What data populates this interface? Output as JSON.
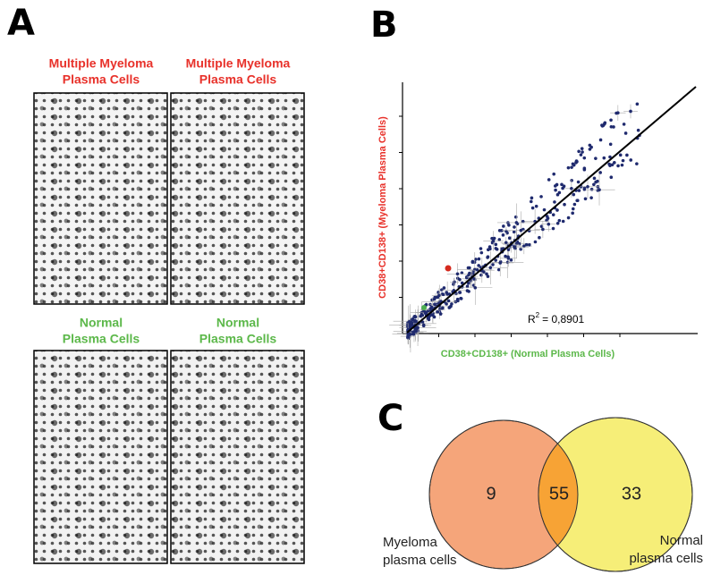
{
  "panels": {
    "A": {
      "label": "A",
      "blots": [
        {
          "title_line1": "Multiple Myeloma",
          "title_line2": "Plasma Cells"
        },
        {
          "title_line1": "Multiple Myeloma",
          "title_line2": "Plasma Cells"
        },
        {
          "title_line1": "Normal",
          "title_line2": "Plasma Cells"
        },
        {
          "title_line1": "Normal",
          "title_line2": "Plasma Cells"
        }
      ]
    },
    "B": {
      "label": "B",
      "y_label": "CD38+CD138+ (Myeloma Plasma Cells)",
      "x_label": "CD38+CD138+ (Normal Plasma Cells)",
      "r2_symbol": "R",
      "r2_sup": "2",
      "r2_value": "= 0,8901"
    },
    "C": {
      "label": "C",
      "left_set": {
        "name_line1": "Myeloma",
        "name_line2": "plasma cells"
      },
      "right_set": {
        "name_line1": "Normal",
        "name_line2": "plasma cells"
      },
      "only_left": "9",
      "both": "55",
      "only_right": "33"
    }
  }
}
